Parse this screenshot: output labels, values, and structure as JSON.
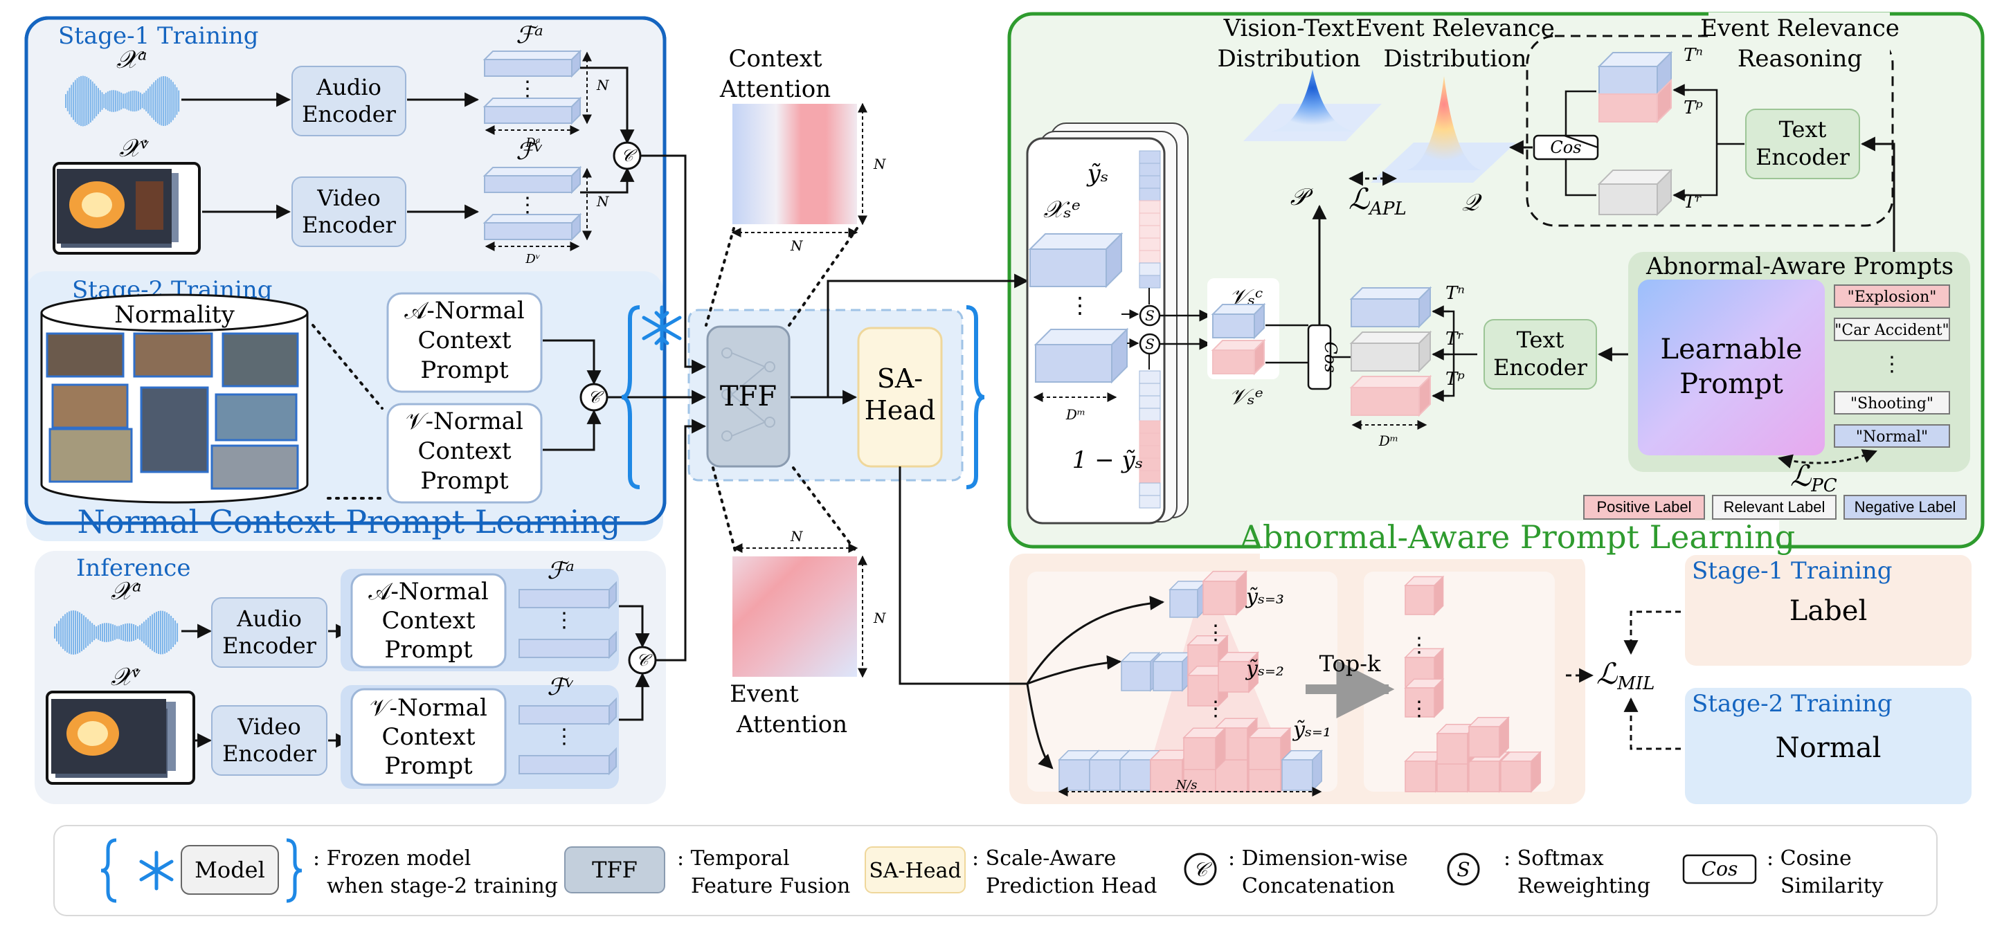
{
  "stage1": {
    "title": "Stage-1 Training",
    "audio_input": "𝒳ᵃ",
    "video_input": "𝒳ᵛ",
    "audio_encoder": [
      "Audio",
      "Encoder"
    ],
    "video_encoder": [
      "Video",
      "Encoder"
    ],
    "feat_a": "ℱᵃ",
    "feat_v": "ℱᵛ",
    "dim_a": "Dᵃ",
    "dim_v": "Dᵛ",
    "n": "N",
    "dots": "⋮"
  },
  "stage2": {
    "title": "Stage-2 Training",
    "normality": "Normality",
    "a_prompt": [
      "𝒜-Normal",
      "Context",
      "Prompt"
    ],
    "v_prompt": [
      "𝒱-Normal",
      "Context",
      "Prompt"
    ],
    "section_title": "Normal Context Prompt Learning"
  },
  "inference": {
    "title": "Inference",
    "audio_input": "𝒳ᵃ",
    "video_input": "𝒳ᵛ",
    "audio_encoder": [
      "Audio",
      "Encoder"
    ],
    "video_encoder": [
      "Video",
      "Encoder"
    ],
    "a_prompt": [
      "𝒜-Normal",
      "Context",
      "Prompt"
    ],
    "v_prompt": [
      "𝒱-Normal",
      "Context",
      "Prompt"
    ],
    "feat_a": "ℱᵃ",
    "feat_v": "ℱᵛ"
  },
  "concat_symbol": "𝒞",
  "softmax_symbol": "S",
  "center": {
    "context_attention": [
      "Context",
      "Attention"
    ],
    "event_attention": [
      "Event",
      "Attention"
    ],
    "tff": "TFF",
    "sa_head": [
      "SA-",
      "Head"
    ],
    "n": "N"
  },
  "aapl": {
    "section_title": "Abnormal-Aware Prompt Learning",
    "vision_text": [
      "Vision-Text",
      "Distribution"
    ],
    "event_relevance": [
      "Event Relevance",
      "Distribution"
    ],
    "reasoning": [
      "Event Relevance",
      "Reasoning"
    ],
    "p": "𝒫",
    "q": "𝒬",
    "l_apl": "ℒ",
    "l_apl_sub": "APL",
    "cos": "Cos",
    "text_encoder": [
      "Text",
      "Encoder"
    ],
    "tn": "Tⁿ",
    "tp": "Tᵖ",
    "tr": "Tʳ",
    "ys": "ỹₛ",
    "xs": "𝒳ₛᵉ",
    "one_minus": "1 − ỹₛ",
    "dm": "Dᵐ",
    "vc": "𝒱ₛᶜ",
    "ve": "𝒱ₛᵉ",
    "prompts_title": "Abnormal-Aware Prompts",
    "learnable": [
      "Learnable",
      "Prompt"
    ],
    "labels": [
      "\"Explosion\"",
      "\"Car Accident\"",
      "\"Shooting\"",
      "\"Normal\""
    ],
    "l_pc": "ℒ",
    "l_pc_sub": "PC",
    "legend": [
      "Positive Label",
      "Relevant Label",
      "Negative Label"
    ]
  },
  "scale": {
    "y3": "ỹₛ₌₃",
    "y2": "ỹₛ₌₂",
    "y1": "ỹₛ₌₁",
    "topk": "Top-k",
    "ns": "N/s",
    "l_mil": "ℒ",
    "l_mil_sub": "MIL",
    "stage1_title": "Stage-1 Training",
    "stage1_value": "Label",
    "stage2_title": "Stage-2 Training",
    "stage2_value": "Normal"
  },
  "legend_bar": {
    "model": "Model",
    "frozen": [
      ": Frozen model",
      "when stage-2 training"
    ],
    "tff": "TFF",
    "tff_desc": [
      ": Temporal",
      "Feature Fusion"
    ],
    "sa": "SA-Head",
    "sa_desc": [
      ": Scale-Aware",
      "Prediction Head"
    ],
    "concat_desc": [
      ": Dimension-wise",
      "Concatenation"
    ],
    "softmax_desc": [
      ": Softmax",
      "Reweighting"
    ],
    "cos": "Cos",
    "cos_desc": [
      ": Cosine",
      "Similarity"
    ]
  },
  "colors": {
    "blue_frame": "#1565c0",
    "green_frame": "#2e9b2e",
    "title_blue": "#1565c0",
    "title_green": "#2e9b2e",
    "feat_blue": "#c9d6f2",
    "feat_red": "#f6c6c8",
    "feat_gray": "#e4e4e4"
  }
}
